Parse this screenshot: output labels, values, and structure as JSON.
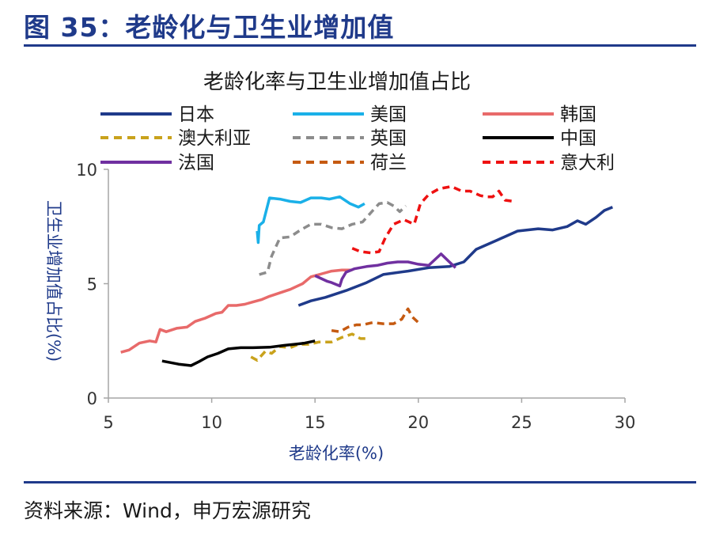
{
  "header": {
    "figure_title": "图 35：老龄化与卫生业增加值"
  },
  "footer": {
    "source": "资料来源：Wind，申万宏源研究"
  },
  "chart_data": {
    "type": "line",
    "title": "老龄化率与卫生业增加值占比",
    "xlabel": "老龄化率(%)",
    "ylabel": "卫生业增加值占比(%)",
    "xlim": [
      5,
      30
    ],
    "ylim": [
      0,
      10
    ],
    "x_ticks": [
      5,
      10,
      15,
      20,
      25,
      30
    ],
    "y_ticks": [
      0,
      5,
      10
    ],
    "grid": false,
    "legend_placement": "top",
    "series": [
      {
        "name": "日本",
        "color": "#1f3a8a",
        "dash": "solid",
        "points": [
          [
            14.2,
            4.05
          ],
          [
            14.8,
            4.25
          ],
          [
            15.5,
            4.4
          ],
          [
            16.5,
            4.7
          ],
          [
            17.5,
            5.05
          ],
          [
            18.3,
            5.4
          ],
          [
            19.5,
            5.55
          ],
          [
            20.5,
            5.7
          ],
          [
            21.5,
            5.75
          ],
          [
            22.2,
            5.95
          ],
          [
            22.8,
            6.5
          ],
          [
            23.8,
            6.9
          ],
          [
            24.8,
            7.3
          ],
          [
            25.8,
            7.4
          ],
          [
            26.5,
            7.35
          ],
          [
            27.2,
            7.5
          ],
          [
            27.7,
            7.75
          ],
          [
            28.1,
            7.6
          ],
          [
            28.6,
            7.9
          ],
          [
            29.0,
            8.2
          ],
          [
            29.4,
            8.35
          ]
        ]
      },
      {
        "name": "美国",
        "color": "#1ab0e8",
        "dash": "solid",
        "points": [
          [
            12.2,
            7.3
          ],
          [
            12.25,
            6.8
          ],
          [
            12.3,
            7.55
          ],
          [
            12.5,
            7.7
          ],
          [
            12.8,
            8.75
          ],
          [
            13.3,
            8.7
          ],
          [
            13.8,
            8.6
          ],
          [
            14.3,
            8.55
          ],
          [
            14.8,
            8.75
          ],
          [
            15.3,
            8.75
          ],
          [
            15.7,
            8.7
          ],
          [
            16.2,
            8.8
          ],
          [
            16.7,
            8.5
          ],
          [
            17.1,
            8.35
          ],
          [
            17.4,
            8.5
          ]
        ]
      },
      {
        "name": "韩国",
        "color": "#e86a6a",
        "dash": "solid",
        "points": [
          [
            5.6,
            2.0
          ],
          [
            6.0,
            2.1
          ],
          [
            6.5,
            2.4
          ],
          [
            7.0,
            2.5
          ],
          [
            7.3,
            2.45
          ],
          [
            7.5,
            3.0
          ],
          [
            7.8,
            2.9
          ],
          [
            8.3,
            3.05
          ],
          [
            8.8,
            3.1
          ],
          [
            9.2,
            3.35
          ],
          [
            9.7,
            3.5
          ],
          [
            10.2,
            3.7
          ],
          [
            10.5,
            3.75
          ],
          [
            10.8,
            4.05
          ],
          [
            11.2,
            4.05
          ],
          [
            11.6,
            4.1
          ],
          [
            12.0,
            4.2
          ],
          [
            12.4,
            4.3
          ],
          [
            12.8,
            4.45
          ],
          [
            13.3,
            4.6
          ],
          [
            13.8,
            4.75
          ],
          [
            14.4,
            5.0
          ],
          [
            14.8,
            5.3
          ],
          [
            15.4,
            5.45
          ],
          [
            15.8,
            5.55
          ],
          [
            16.3,
            5.6
          ],
          [
            16.8,
            5.6
          ]
        ]
      },
      {
        "name": "澳大利亚",
        "color": "#c9a21c",
        "dash": "dash",
        "points": [
          [
            11.9,
            1.8
          ],
          [
            12.2,
            1.65
          ],
          [
            12.6,
            2.05
          ],
          [
            12.9,
            1.95
          ],
          [
            13.3,
            2.25
          ],
          [
            13.8,
            2.2
          ],
          [
            14.2,
            2.35
          ],
          [
            14.7,
            2.35
          ],
          [
            15.2,
            2.45
          ],
          [
            15.8,
            2.45
          ],
          [
            16.3,
            2.65
          ],
          [
            16.8,
            2.8
          ],
          [
            17.2,
            2.6
          ],
          [
            17.5,
            2.6
          ]
        ]
      },
      {
        "name": "英国",
        "color": "#8c8c8c",
        "dash": "dash",
        "points": [
          [
            12.3,
            5.4
          ],
          [
            12.7,
            5.5
          ],
          [
            12.9,
            6.2
          ],
          [
            13.3,
            7.0
          ],
          [
            13.8,
            7.05
          ],
          [
            14.3,
            7.35
          ],
          [
            14.8,
            7.6
          ],
          [
            15.3,
            7.6
          ],
          [
            15.8,
            7.45
          ],
          [
            16.3,
            7.4
          ],
          [
            16.8,
            7.6
          ],
          [
            17.3,
            7.7
          ],
          [
            17.8,
            8.2
          ],
          [
            18.1,
            8.5
          ],
          [
            18.5,
            8.55
          ],
          [
            18.8,
            8.4
          ],
          [
            19.1,
            8.15
          ],
          [
            19.4,
            8.4
          ]
        ]
      },
      {
        "name": "中国",
        "color": "#000000",
        "dash": "solid",
        "points": [
          [
            7.6,
            1.62
          ],
          [
            8.0,
            1.55
          ],
          [
            8.4,
            1.48
          ],
          [
            8.7,
            1.45
          ],
          [
            9.0,
            1.42
          ],
          [
            9.4,
            1.6
          ],
          [
            9.8,
            1.8
          ],
          [
            10.3,
            1.95
          ],
          [
            10.8,
            2.15
          ],
          [
            11.4,
            2.2
          ],
          [
            12.0,
            2.2
          ],
          [
            12.8,
            2.22
          ],
          [
            13.5,
            2.3
          ],
          [
            14.0,
            2.35
          ],
          [
            14.5,
            2.4
          ],
          [
            15.0,
            2.5
          ]
        ]
      },
      {
        "name": "法国",
        "color": "#7030a0",
        "dash": "solid",
        "points": [
          [
            15.0,
            5.35
          ],
          [
            15.6,
            5.1
          ],
          [
            15.8,
            5.05
          ],
          [
            16.2,
            4.9
          ],
          [
            16.3,
            5.2
          ],
          [
            16.5,
            5.5
          ],
          [
            16.9,
            5.65
          ],
          [
            17.5,
            5.75
          ],
          [
            18.0,
            5.8
          ],
          [
            18.5,
            5.9
          ],
          [
            19.0,
            5.95
          ],
          [
            19.5,
            5.95
          ],
          [
            20.0,
            5.85
          ],
          [
            20.5,
            5.8
          ],
          [
            21.1,
            6.3
          ],
          [
            21.5,
            5.95
          ],
          [
            21.8,
            5.7
          ]
        ]
      },
      {
        "name": "荷兰",
        "color": "#c55a11",
        "dash": "dash",
        "points": [
          [
            15.8,
            2.95
          ],
          [
            16.2,
            2.9
          ],
          [
            16.6,
            3.1
          ],
          [
            17.0,
            3.2
          ],
          [
            17.3,
            3.2
          ],
          [
            17.8,
            3.3
          ],
          [
            18.3,
            3.25
          ],
          [
            18.8,
            3.25
          ],
          [
            19.2,
            3.45
          ],
          [
            19.5,
            3.9
          ],
          [
            19.7,
            3.55
          ],
          [
            20.0,
            3.3
          ]
        ]
      },
      {
        "name": "意大利",
        "color": "#ee1111",
        "dash": "dash",
        "points": [
          [
            16.8,
            6.55
          ],
          [
            17.2,
            6.4
          ],
          [
            17.7,
            6.35
          ],
          [
            18.1,
            6.4
          ],
          [
            18.4,
            7.0
          ],
          [
            18.8,
            7.6
          ],
          [
            19.3,
            7.8
          ],
          [
            19.8,
            7.6
          ],
          [
            20.1,
            8.5
          ],
          [
            20.5,
            8.9
          ],
          [
            21.0,
            9.15
          ],
          [
            21.6,
            9.25
          ],
          [
            22.1,
            9.05
          ],
          [
            22.5,
            9.05
          ],
          [
            23.0,
            8.85
          ],
          [
            23.3,
            8.8
          ],
          [
            23.6,
            8.8
          ],
          [
            23.9,
            9.05
          ],
          [
            24.2,
            8.65
          ],
          [
            24.6,
            8.6
          ]
        ]
      }
    ]
  }
}
